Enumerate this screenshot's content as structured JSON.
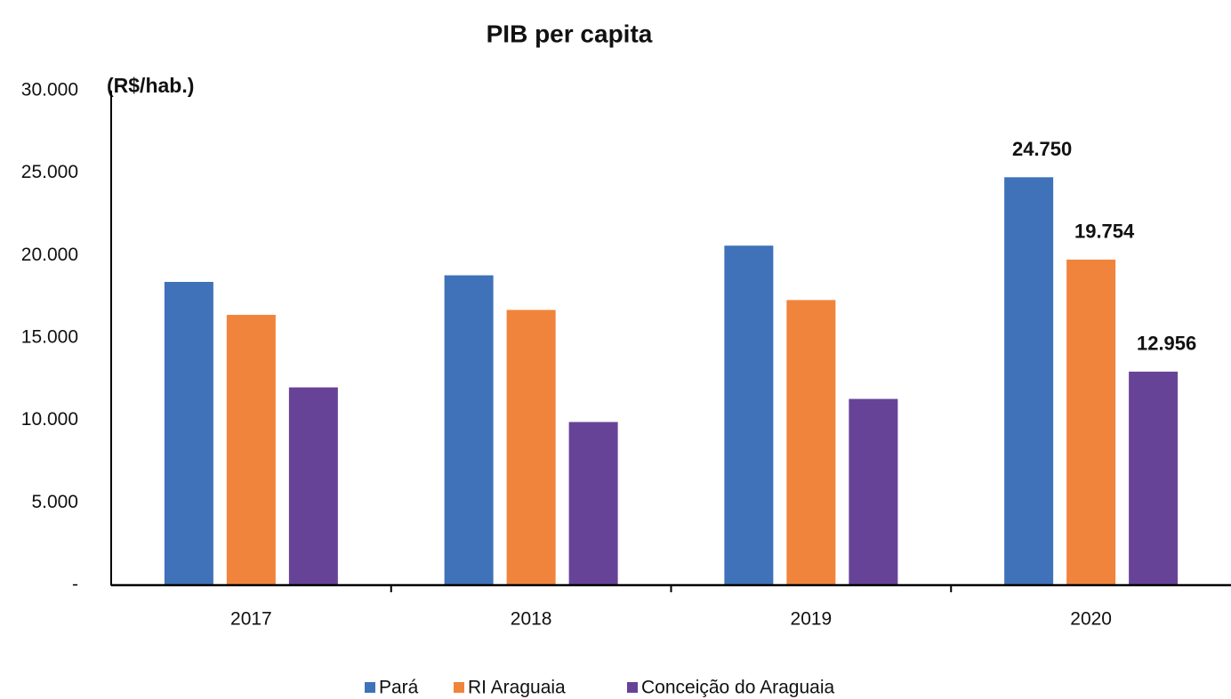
{
  "chart_data": {
    "type": "bar",
    "title": "PIB per capita",
    "y_label": "(R$/hab.)",
    "categories": [
      "2017",
      "2018",
      "2019",
      "2020"
    ],
    "series": [
      {
        "name": "Pará",
        "color": "#3f72b9",
        "values": [
          18400,
          18800,
          20600,
          24750
        ],
        "value_labels": [
          null,
          null,
          null,
          "24.750"
        ]
      },
      {
        "name": "RI Araguaia",
        "color": "#f0843c",
        "values": [
          16400,
          16700,
          17300,
          19754
        ],
        "value_labels": [
          null,
          null,
          null,
          "19.754"
        ]
      },
      {
        "name": "Conceição do Araguaia",
        "color": "#674398",
        "values": [
          12000,
          9900,
          11300,
          12956
        ],
        "value_labels": [
          null,
          null,
          null,
          "12.956"
        ]
      }
    ],
    "ylim": [
      0,
      30000
    ],
    "yticks": [
      {
        "value": 0,
        "label": "-"
      },
      {
        "value": 5000,
        "label": "5.000"
      },
      {
        "value": 10000,
        "label": "10.000"
      },
      {
        "value": 15000,
        "label": "15.000"
      },
      {
        "value": 20000,
        "label": "20.000"
      },
      {
        "value": 25000,
        "label": "25.000"
      },
      {
        "value": 30000,
        "label": "30.000"
      }
    ],
    "grid": false,
    "legend": "bottom"
  }
}
